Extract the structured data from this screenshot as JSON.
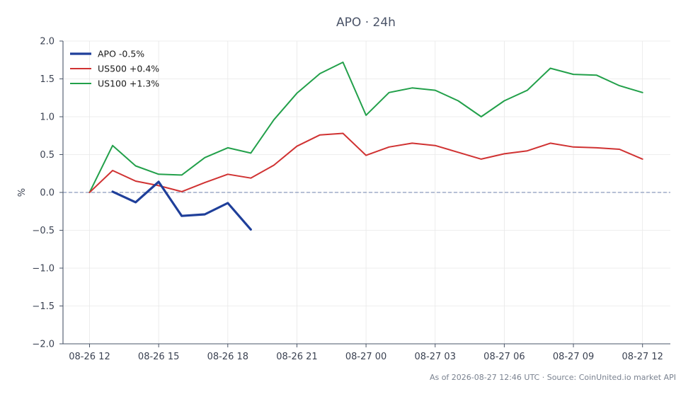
{
  "chart_data": {
    "type": "line",
    "title": "APO · 24h",
    "xlabel": "",
    "ylabel": "%",
    "ylim": [
      -2.0,
      2.0
    ],
    "y_ticks": [
      "2.0",
      "1.5",
      "1.0",
      "0.5",
      "0.0",
      "−0.5",
      "−1.0",
      "−1.5",
      "−2.0"
    ],
    "x_ticks": [
      "08-26 12",
      "08-26 15",
      "08-26 18",
      "08-26 21",
      "08-27 00",
      "08-27 03",
      "08-27 06",
      "08-27 09",
      "08-27 12"
    ],
    "grid": true,
    "legend_position": "top-left",
    "zero_line": {
      "value": 0.0,
      "style": "dashed",
      "color": "#8a9bbd"
    },
    "series": [
      {
        "name": "APO -0.5%",
        "color": "#1f3f9a",
        "width": 3.2,
        "x": [
          13,
          14,
          15,
          16,
          17,
          18,
          19
        ],
        "values": [
          0.01,
          -0.13,
          0.14,
          -0.31,
          -0.29,
          -0.14,
          -0.49
        ]
      },
      {
        "name": "US500 +0.4%",
        "color": "#d03232",
        "width": 2,
        "x": [
          12,
          13,
          14,
          15,
          16,
          17,
          18,
          19,
          20,
          21,
          22,
          23,
          24,
          25,
          26,
          27,
          28,
          29,
          30,
          31,
          32,
          33,
          34,
          35,
          36
        ],
        "values": [
          0.0,
          0.29,
          0.15,
          0.09,
          0.01,
          0.13,
          0.24,
          0.19,
          0.36,
          0.61,
          0.76,
          0.78,
          0.49,
          0.6,
          0.65,
          0.62,
          0.53,
          0.44,
          0.51,
          0.55,
          0.65,
          0.6,
          0.59,
          0.57,
          0.44
        ]
      },
      {
        "name": "US100 +1.3%",
        "color": "#22a04a",
        "width": 2,
        "x": [
          12,
          13,
          14,
          15,
          16,
          17,
          18,
          19,
          20,
          21,
          22,
          23,
          24,
          25,
          26,
          27,
          28,
          29,
          30,
          31,
          32,
          33,
          34,
          35,
          36
        ],
        "values": [
          0.0,
          0.62,
          0.35,
          0.24,
          0.23,
          0.46,
          0.59,
          0.52,
          0.96,
          1.31,
          1.57,
          1.72,
          1.02,
          1.32,
          1.38,
          1.35,
          1.21,
          1.0,
          1.21,
          1.35,
          1.64,
          1.56,
          1.55,
          1.41,
          1.32
        ]
      }
    ],
    "footer": "As of 2026-08-27 12:46 UTC · Source: CoinUnited.io market API",
    "colors": {
      "axis": "#4a5568",
      "grid": "#e8e8e8",
      "text": "#3b4252"
    }
  }
}
